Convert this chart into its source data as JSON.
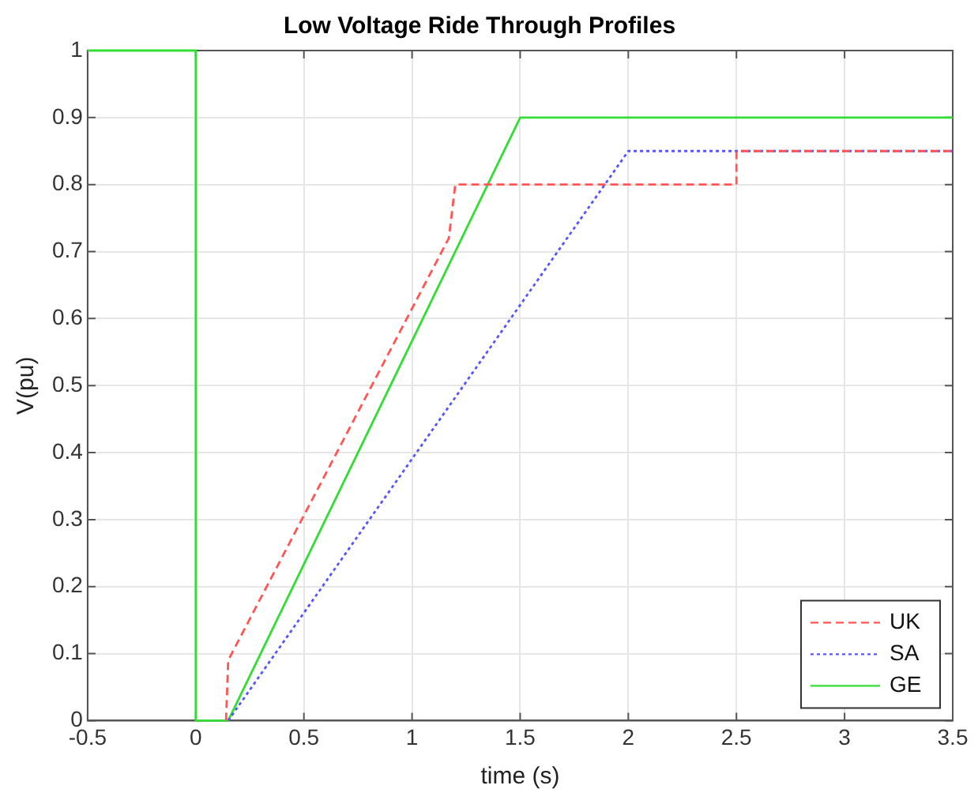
{
  "chart_data": {
    "type": "line",
    "title": "Low Voltage Ride Through Profiles",
    "xlabel": "time (s)",
    "ylabel": "V(pu)",
    "series": [
      {
        "name": "UK",
        "color": "#ff5555",
        "line_style": "dashed",
        "x": [
          0.14,
          0.15,
          1.17,
          1.2,
          2.5,
          2.5,
          3.5
        ],
        "values": [
          0,
          0.09,
          0.72,
          0.8,
          0.8,
          0.85,
          0.85
        ]
      },
      {
        "name": "SA",
        "color": "#5555ff",
        "line_style": "dotted",
        "x": [
          0.15,
          2,
          3.5
        ],
        "values": [
          0,
          0.85,
          0.85
        ]
      },
      {
        "name": "GE",
        "color": "#33dd33",
        "line_style": "solid",
        "x": [
          -0.5,
          0,
          0,
          0.15,
          1.5,
          3.5
        ],
        "values": [
          1,
          1,
          0,
          0,
          0.9,
          0.9
        ]
      }
    ],
    "xlim": [
      -0.5,
      3.5
    ],
    "xticks": [
      -0.5,
      0,
      0.5,
      1,
      1.5,
      2,
      2.5,
      3,
      3.5
    ],
    "ylim": [
      0,
      1
    ],
    "yticks": [
      0,
      0.1,
      0.2,
      0.3,
      0.4,
      0.5,
      0.6,
      0.7,
      0.8,
      0.9,
      1
    ],
    "grid": true,
    "legend": "bottom right",
    "marker": "none"
  }
}
